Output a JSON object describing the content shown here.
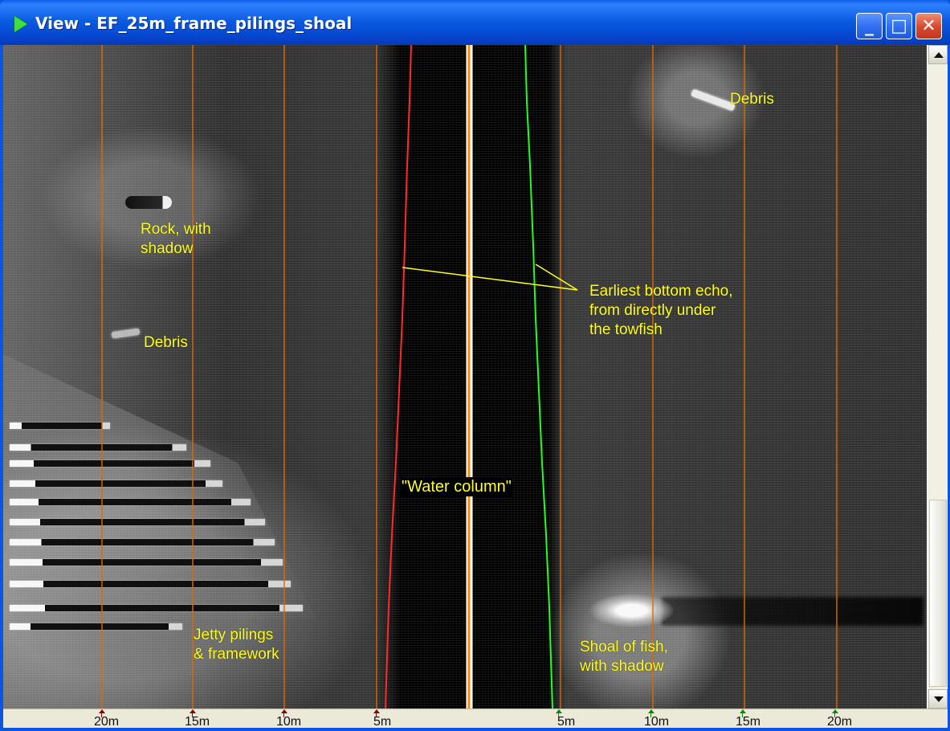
{
  "window": {
    "title": "View - EF_25m_frame_pilings_shoal",
    "title_icon": "green-play-icon",
    "buttons": [
      {
        "name": "minimize",
        "glyph": "_"
      },
      {
        "name": "maximize",
        "glyph": "□"
      },
      {
        "name": "close",
        "glyph": "✕"
      }
    ]
  },
  "annotations": {
    "debris_top": "Debris",
    "rock": "Rock, with\nshadow",
    "debris_left": "Debris",
    "earliest_echo": "Earliest bottom echo,\nfrom directly under\nthe towfish",
    "water_column": "\"Water column\"",
    "jetty": "Jetty pilings\n& framework",
    "fish": "Shoal of fish,\nwith shadow"
  },
  "scale": {
    "left": [
      "20m",
      "15m",
      "10m",
      "5m"
    ],
    "right": [
      "5m",
      "10m",
      "15m",
      "20m"
    ]
  },
  "colors": {
    "annotation": "#ffff20",
    "range_line": "#d96b00",
    "bottom_left": "#ff2a2a",
    "bottom_right": "#20ff20",
    "center_white": "#ffffff",
    "center_orange": "#ff8a00",
    "left_tick": "#8c0000",
    "right_tick": "#008f00",
    "title_bar": "#0a56e2"
  },
  "scrollbar": {
    "up_icon": "arrow-up-icon",
    "down_icon": "arrow-down-icon"
  }
}
